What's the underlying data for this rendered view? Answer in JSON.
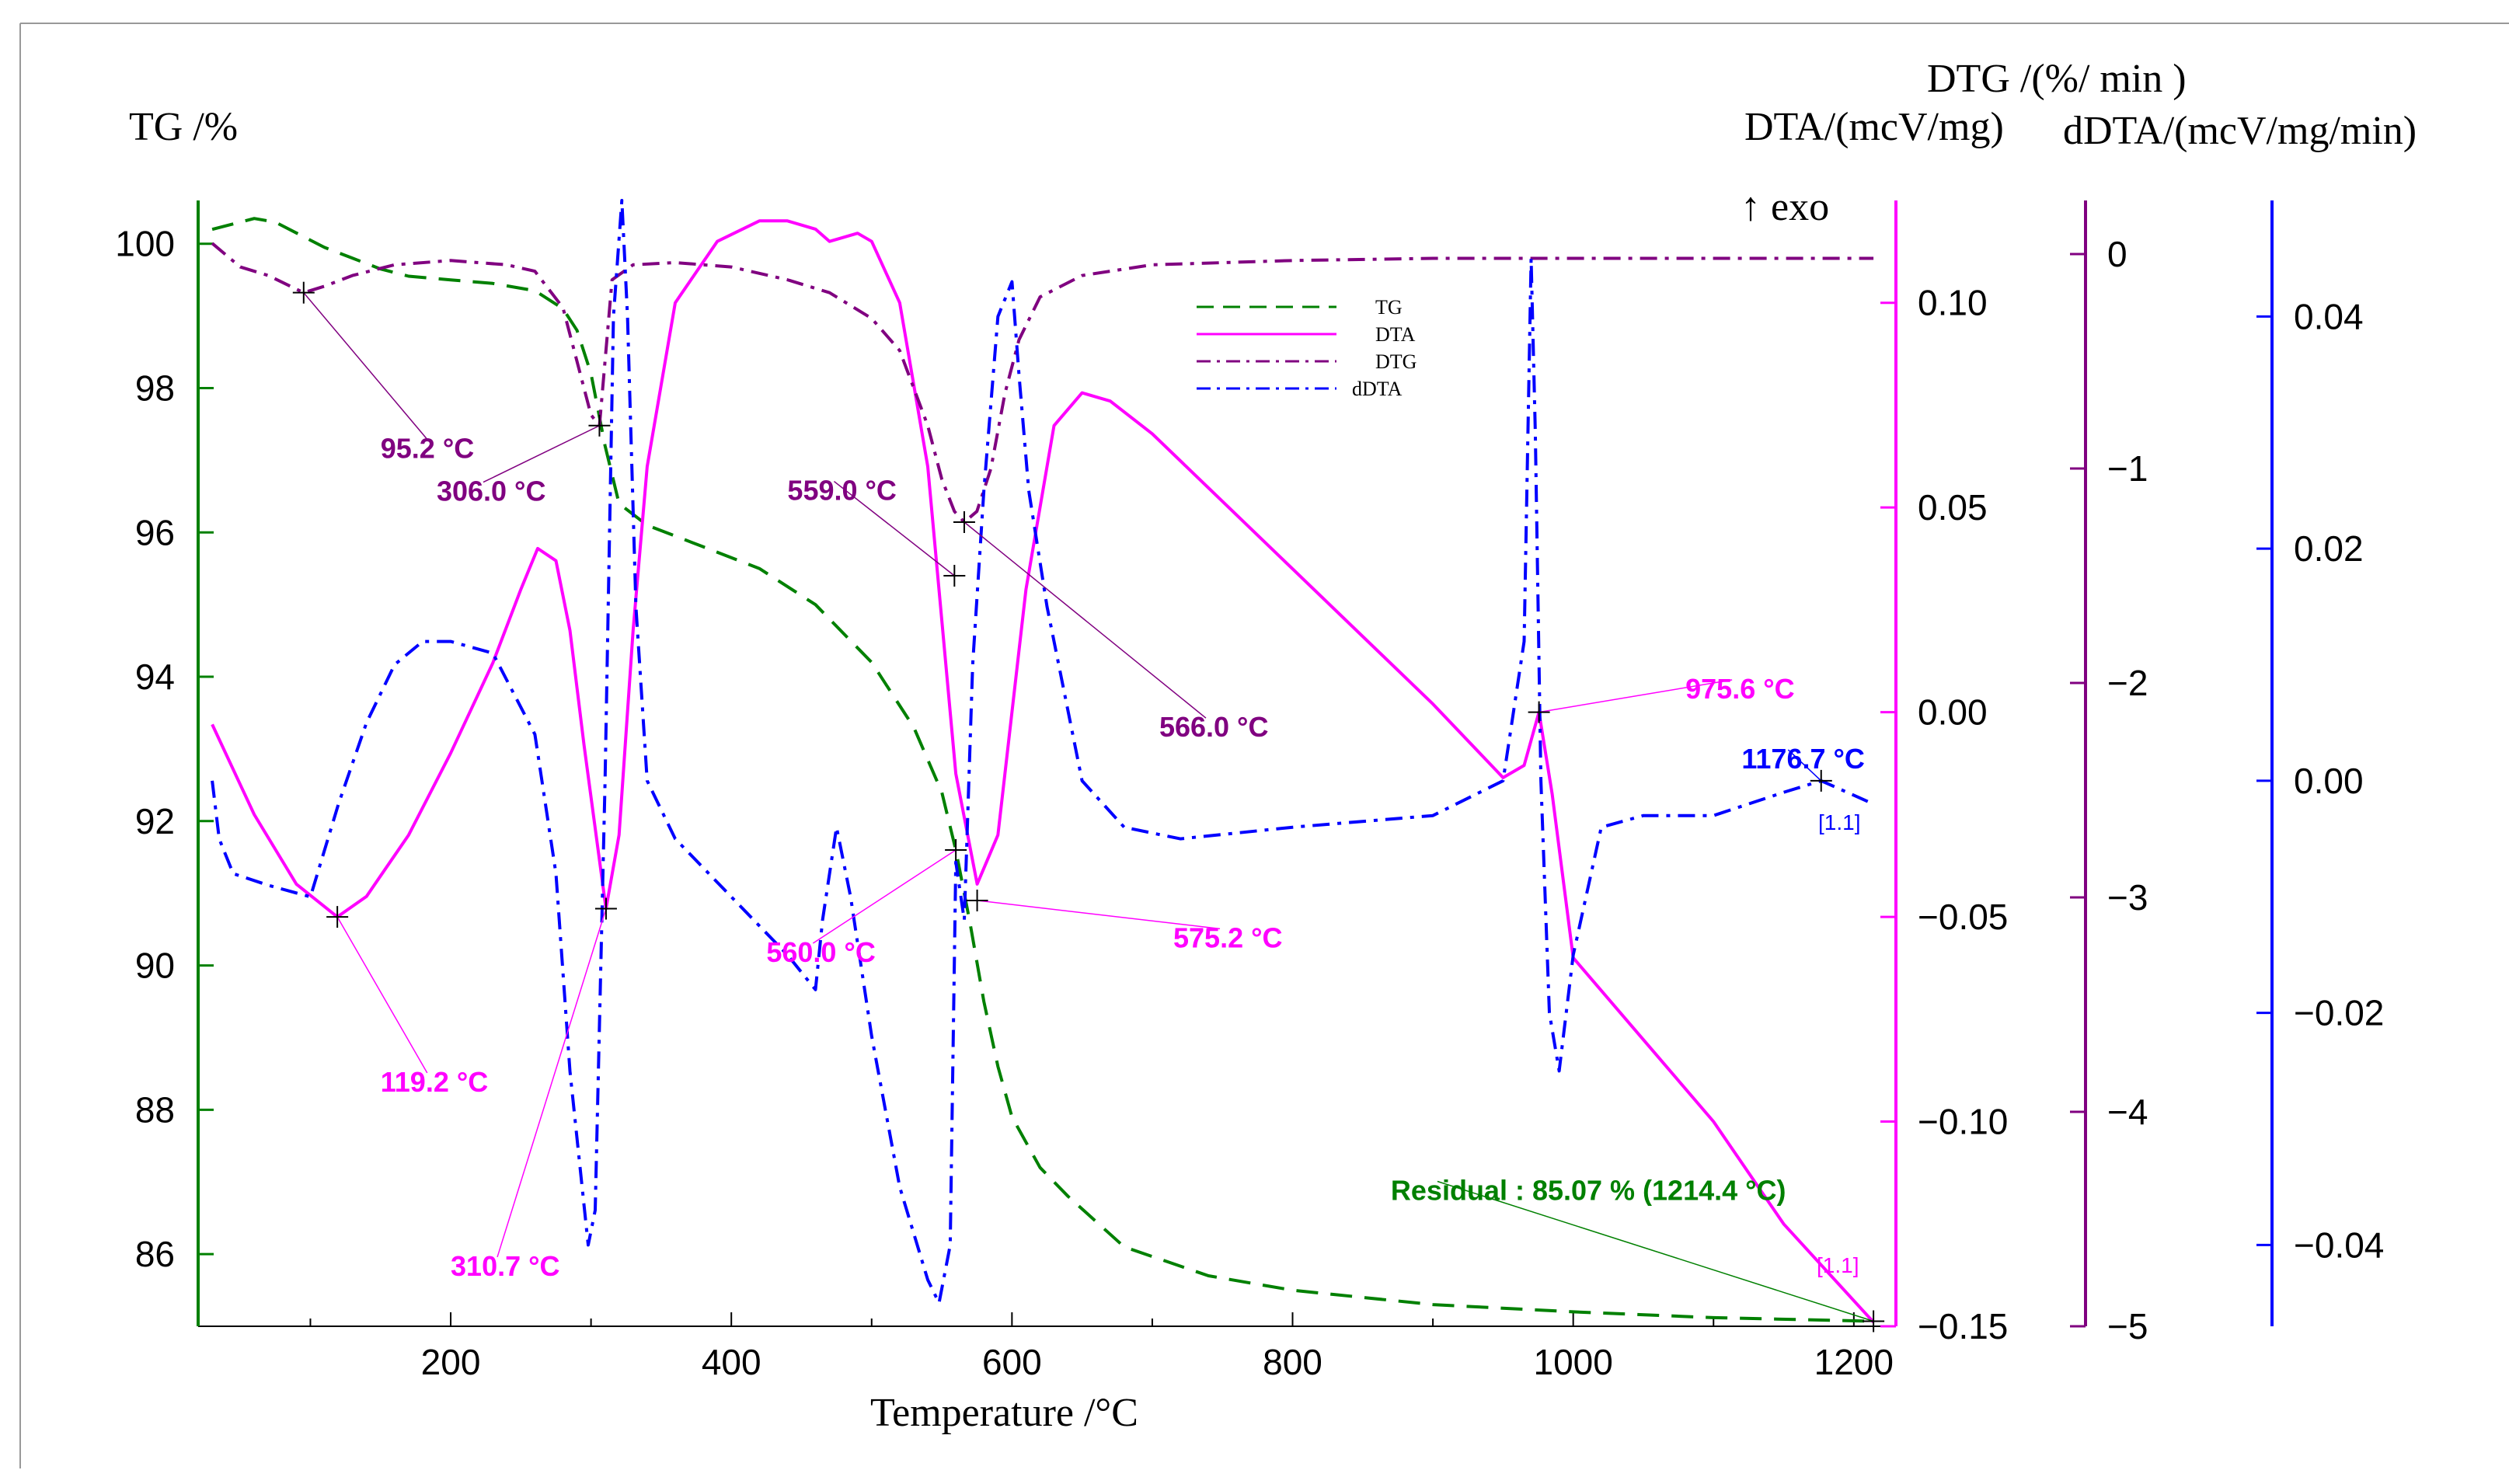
{
  "chart_data": {
    "type": "line",
    "xlabel": "Temperature   /°C",
    "x_ticks": [
      "200",
      "400",
      "600",
      "800",
      "1000",
      "1200"
    ],
    "xlim": [
      20,
      1230
    ],
    "axes": [
      {
        "id": "tg",
        "label": "TG /%",
        "color": "#008000",
        "ylim": [
          85,
          100.6
        ],
        "ticks": [
          "100",
          "98",
          "96",
          "94",
          "92",
          "90",
          "88",
          "86"
        ],
        "tick_values": [
          100,
          98,
          96,
          94,
          92,
          90,
          88,
          86
        ]
      },
      {
        "id": "dta",
        "label": "DTA/(mcV/mg)",
        "color": "#ff00ff",
        "ylim": [
          -0.15,
          0.125
        ],
        "ticks": [
          "0.10",
          "0.05",
          "0.00",
          "−0.05",
          "−0.10",
          "−0.15"
        ],
        "tick_values": [
          0.1,
          0.05,
          0.0,
          -0.05,
          -0.1,
          -0.15
        ]
      },
      {
        "id": "dtg",
        "label": "DTG /(%/ min )",
        "color": "#800080",
        "ylim": [
          -5,
          0.25
        ],
        "ticks": [
          "0",
          "−1",
          "−2",
          "−3",
          "−4",
          "−5"
        ],
        "tick_values": [
          0,
          -1,
          -2,
          -3,
          -4,
          -5
        ]
      },
      {
        "id": "ddta",
        "label": "dDTA/(mcV/mg/min)",
        "color": "#0000ff",
        "ylim": [
          -0.047,
          0.05
        ],
        "ticks": [
          "0.04",
          "0.02",
          "0.00",
          "−0.02",
          "−0.04"
        ],
        "tick_values": [
          0.04,
          0.02,
          0.0,
          -0.02,
          -0.04
        ]
      }
    ],
    "exo_label": "↑ exo",
    "legend": [
      {
        "name": "TG",
        "color": "#008000",
        "style": "dashed"
      },
      {
        "name": "DTA",
        "color": "#ff00ff",
        "style": "solid"
      },
      {
        "name": "DTG",
        "color": "#800080",
        "style": "dashdot"
      },
      {
        "name": "dDTA",
        "color": "#0000ff",
        "style": "dashdot"
      }
    ],
    "series": [
      {
        "name": "TG",
        "axis": "tg",
        "color": "#008000",
        "dash": "28 16",
        "x": [
          30,
          50,
          60,
          75,
          90,
          110,
          130,
          150,
          170,
          200,
          230,
          260,
          280,
          290,
          300,
          310,
          320,
          340,
          380,
          420,
          460,
          500,
          530,
          550,
          560,
          570,
          580,
          590,
          600,
          620,
          640,
          680,
          740,
          800,
          900,
          1000,
          1100,
          1214
        ],
        "y": [
          100.2,
          100.3,
          100.35,
          100.3,
          100.15,
          99.95,
          99.8,
          99.65,
          99.55,
          99.5,
          99.45,
          99.35,
          99.1,
          98.8,
          98.2,
          97.2,
          96.4,
          96.1,
          95.8,
          95.5,
          95,
          94.2,
          93.3,
          92.4,
          91.6,
          90.6,
          89.5,
          88.6,
          87.9,
          87.2,
          86.8,
          86.1,
          85.7,
          85.5,
          85.3,
          85.2,
          85.12,
          85.07
        ]
      },
      {
        "name": "DTA",
        "axis": "dta",
        "color": "#ff00ff",
        "dash": "",
        "x": [
          30,
          60,
          90,
          119.2,
          140,
          170,
          200,
          230,
          250,
          262,
          275,
          285,
          295,
          310.7,
          320,
          330,
          340,
          360,
          390,
          420,
          440,
          460,
          470,
          480,
          490,
          500,
          520,
          540,
          560,
          575.2,
          590,
          610,
          630,
          650,
          670,
          700,
          800,
          900,
          950,
          965,
          975.6,
          985,
          1000,
          1050,
          1100,
          1150,
          1214
        ],
        "y": [
          -0.003,
          -0.025,
          -0.042,
          -0.05,
          -0.045,
          -0.03,
          -0.01,
          0.012,
          0.03,
          0.04,
          0.037,
          0.02,
          -0.008,
          -0.048,
          -0.03,
          0.02,
          0.06,
          0.1,
          0.115,
          0.12,
          0.12,
          0.118,
          0.115,
          0.116,
          0.117,
          0.115,
          0.1,
          0.06,
          -0.015,
          -0.042,
          -0.03,
          0.03,
          0.07,
          0.078,
          0.076,
          0.068,
          0.035,
          0.002,
          -0.016,
          -0.013,
          0.0,
          -0.02,
          -0.06,
          -0.08,
          -0.1,
          -0.125,
          -0.149
        ]
      },
      {
        "name": "DTG",
        "axis": "dtg",
        "color": "#800080",
        "dash": "22 10 5 10",
        "x": [
          30,
          50,
          70,
          95.2,
          110,
          130,
          160,
          200,
          240,
          260,
          280,
          300,
          306,
          315,
          330,
          360,
          400,
          440,
          470,
          500,
          520,
          540,
          550,
          559,
          566,
          575,
          585,
          595,
          605,
          620,
          650,
          700,
          800,
          900,
          1000,
          1214
        ],
        "y": [
          0.05,
          -0.06,
          -0.1,
          -0.18,
          -0.15,
          -0.1,
          -0.05,
          -0.03,
          -0.05,
          -0.08,
          -0.25,
          -0.75,
          -0.8,
          -0.12,
          -0.05,
          -0.04,
          -0.06,
          -0.12,
          -0.18,
          -0.3,
          -0.45,
          -0.8,
          -1.05,
          -1.2,
          -1.25,
          -1.2,
          -1.0,
          -0.65,
          -0.4,
          -0.2,
          -0.1,
          -0.05,
          -0.03,
          -0.02,
          -0.02,
          -0.02
        ]
      },
      {
        "name": "dDTA",
        "axis": "ddta",
        "color": "#0000ff",
        "dash": "22 10 5 10",
        "x": [
          30,
          35,
          45,
          70,
          100,
          120,
          140,
          160,
          180,
          200,
          230,
          260,
          275,
          285,
          298,
          303,
          310,
          316,
          322,
          326,
          332,
          340,
          360,
          400,
          440,
          460,
          465,
          475,
          485,
          500,
          520,
          540,
          548,
          556,
          560,
          566,
          572,
          580,
          590,
          600,
          605,
          612,
          625,
          650,
          680,
          720,
          800,
          900,
          950,
          965,
          970,
          973,
          977,
          983,
          990,
          1000,
          1020,
          1050,
          1100,
          1150,
          1176.7,
          1214
        ],
        "y": [
          0.0,
          -0.005,
          -0.008,
          -0.009,
          -0.01,
          -0.002,
          0.005,
          0.01,
          0.012,
          0.012,
          0.011,
          0.004,
          -0.008,
          -0.025,
          -0.04,
          -0.037,
          0.0,
          0.04,
          0.05,
          0.04,
          0.015,
          0.0,
          -0.005,
          -0.01,
          -0.015,
          -0.018,
          -0.012,
          -0.004,
          -0.01,
          -0.022,
          -0.035,
          -0.043,
          -0.045,
          -0.04,
          -0.007,
          -0.012,
          0.01,
          0.025,
          0.04,
          0.043,
          0.035,
          0.025,
          0.015,
          0.0,
          -0.004,
          -0.005,
          -0.004,
          -0.003,
          0.0,
          0.012,
          0.045,
          0.03,
          0.0,
          -0.02,
          -0.025,
          -0.015,
          -0.004,
          -0.003,
          -0.003,
          -0.001,
          0.0,
          -0.002
        ]
      }
    ],
    "annotations": [
      {
        "text": "95.2 °C",
        "axis": "dtg",
        "x": 95.2,
        "y": -0.18,
        "lx": 150,
        "ly": -0.9,
        "color": "#800080"
      },
      {
        "text": "306.0 °C",
        "axis": "dtg",
        "x": 306,
        "y": -0.8,
        "lx": 190,
        "ly": -1.1,
        "color": "#800080"
      },
      {
        "text": "559.0 °C",
        "axis": "tg",
        "x": 559,
        "y": 95.4,
        "lx": 440,
        "ly": 96.6,
        "color": "#800080"
      },
      {
        "text": "566.0 °C",
        "axis": "dtg",
        "x": 566,
        "y": -1.25,
        "lx": 705,
        "ly": -2.2,
        "color": "#800080"
      },
      {
        "text": "975.6 °C",
        "axis": "dta",
        "x": 975.6,
        "y": 0.0,
        "lx": 1080,
        "ly": 0.006,
        "color": "#ff00ff"
      },
      {
        "text": "1176.7 °C",
        "axis": "ddta",
        "x": 1176.7,
        "y": 0.0,
        "lx": 1120,
        "ly": 0.002,
        "color": "#0000ff"
      },
      {
        "text": "119.2 °C",
        "axis": "dta",
        "x": 119.2,
        "y": -0.05,
        "lx": 150,
        "ly": -0.09,
        "color": "#ff00ff"
      },
      {
        "text": "310.7 °C",
        "axis": "dta",
        "x": 310.7,
        "y": -0.048,
        "lx": 200,
        "ly": -0.135,
        "color": "#ff00ff"
      },
      {
        "text": "560.0 °C",
        "axis": "tg",
        "x": 560,
        "y": 91.6,
        "lx": 425,
        "ly": 90.2,
        "color": "#ff00ff"
      },
      {
        "text": "575.2 °C",
        "axis": "tg",
        "x": 575.2,
        "y": 90.9,
        "lx": 715,
        "ly": 90.4,
        "color": "#ff00ff"
      },
      {
        "text": "Residual : 85.07 % (1214.4 °C)",
        "axis": "tg",
        "x": 1214,
        "y": 85.07,
        "lx": 870,
        "ly": 86.9,
        "color": "#008000"
      }
    ],
    "markers": [
      "[1.1]",
      "[1.1]"
    ]
  }
}
